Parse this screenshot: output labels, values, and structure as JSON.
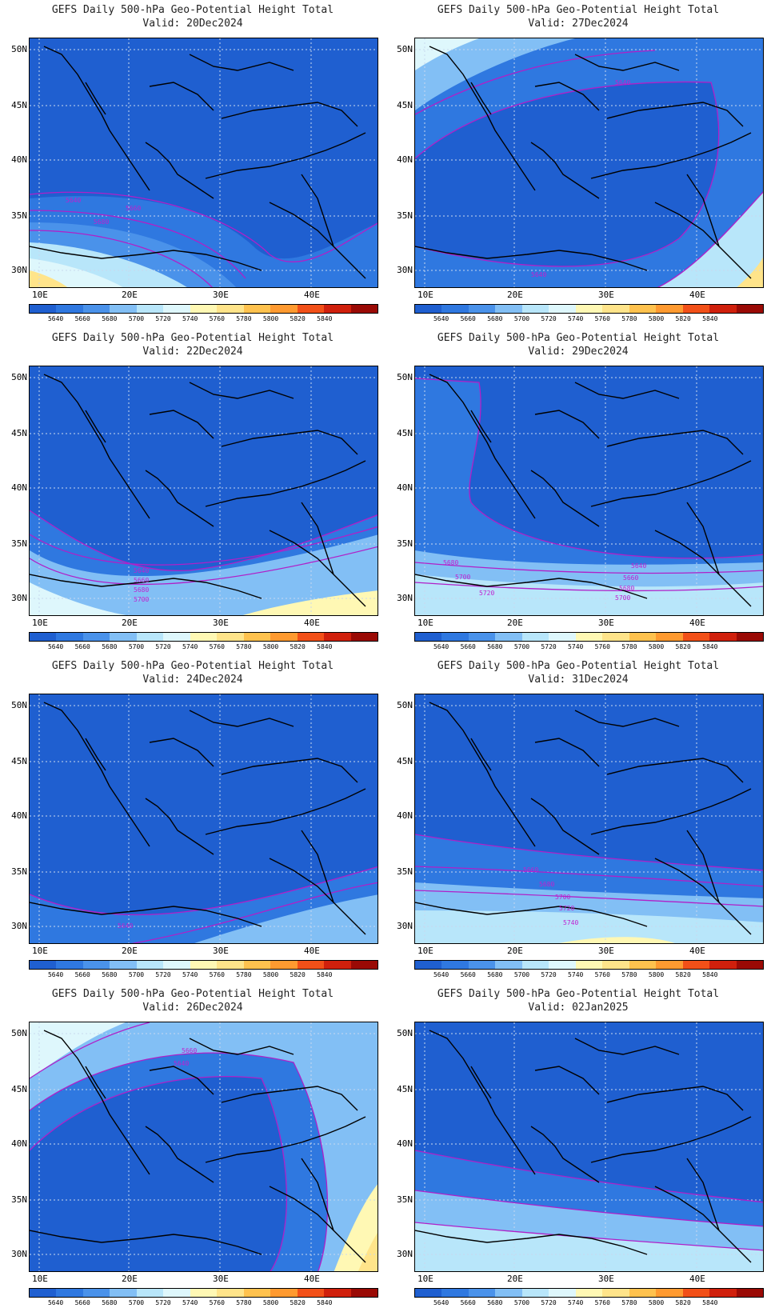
{
  "title_line1": "GEFS Daily 500-hPa Geo-Potential Height Total",
  "lat_ticks": [
    "50N",
    "45N",
    "40N",
    "35N",
    "30N"
  ],
  "lon_ticks": [
    "10E",
    "20E",
    "30E",
    "40E"
  ],
  "colorbar": {
    "labels": [
      "5640",
      "5660",
      "5680",
      "5700",
      "5720",
      "5740",
      "5760",
      "5780",
      "5800",
      "5820",
      "5840"
    ],
    "colors": [
      "#1f5fd0",
      "#2f78e0",
      "#4a92ea",
      "#82bff5",
      "#b8e6fa",
      "#def7fc",
      "#fff8b4",
      "#ffe48a",
      "#ffc24e",
      "#ff9a30",
      "#f25018",
      "#d0200c",
      "#9a0a05"
    ]
  },
  "panels": [
    {
      "valid": "Valid: 20Dec2024",
      "contour_labels": [
        "5640",
        "5660",
        "5680"
      ]
    },
    {
      "valid": "Valid: 27Dec2024",
      "contour_labels": [
        "5640",
        "5640"
      ]
    },
    {
      "valid": "Valid: 22Dec2024",
      "contour_labels": [
        "5640",
        "5660",
        "5680",
        "5700"
      ]
    },
    {
      "valid": "Valid: 29Dec2024",
      "contour_labels": [
        "5680",
        "5700",
        "5720",
        "5640",
        "5660",
        "5680",
        "5700"
      ]
    },
    {
      "valid": "Valid: 24Dec2024",
      "contour_labels": [
        "5640"
      ]
    },
    {
      "valid": "Valid: 31Dec2024",
      "contour_labels": [
        "5660",
        "5680",
        "5700",
        "5720",
        "5740"
      ]
    },
    {
      "valid": "Valid: 26Dec2024",
      "contour_labels": [
        "5660",
        "5640"
      ]
    },
    {
      "valid": "Valid: 02Jan2025",
      "contour_labels": []
    }
  ]
}
